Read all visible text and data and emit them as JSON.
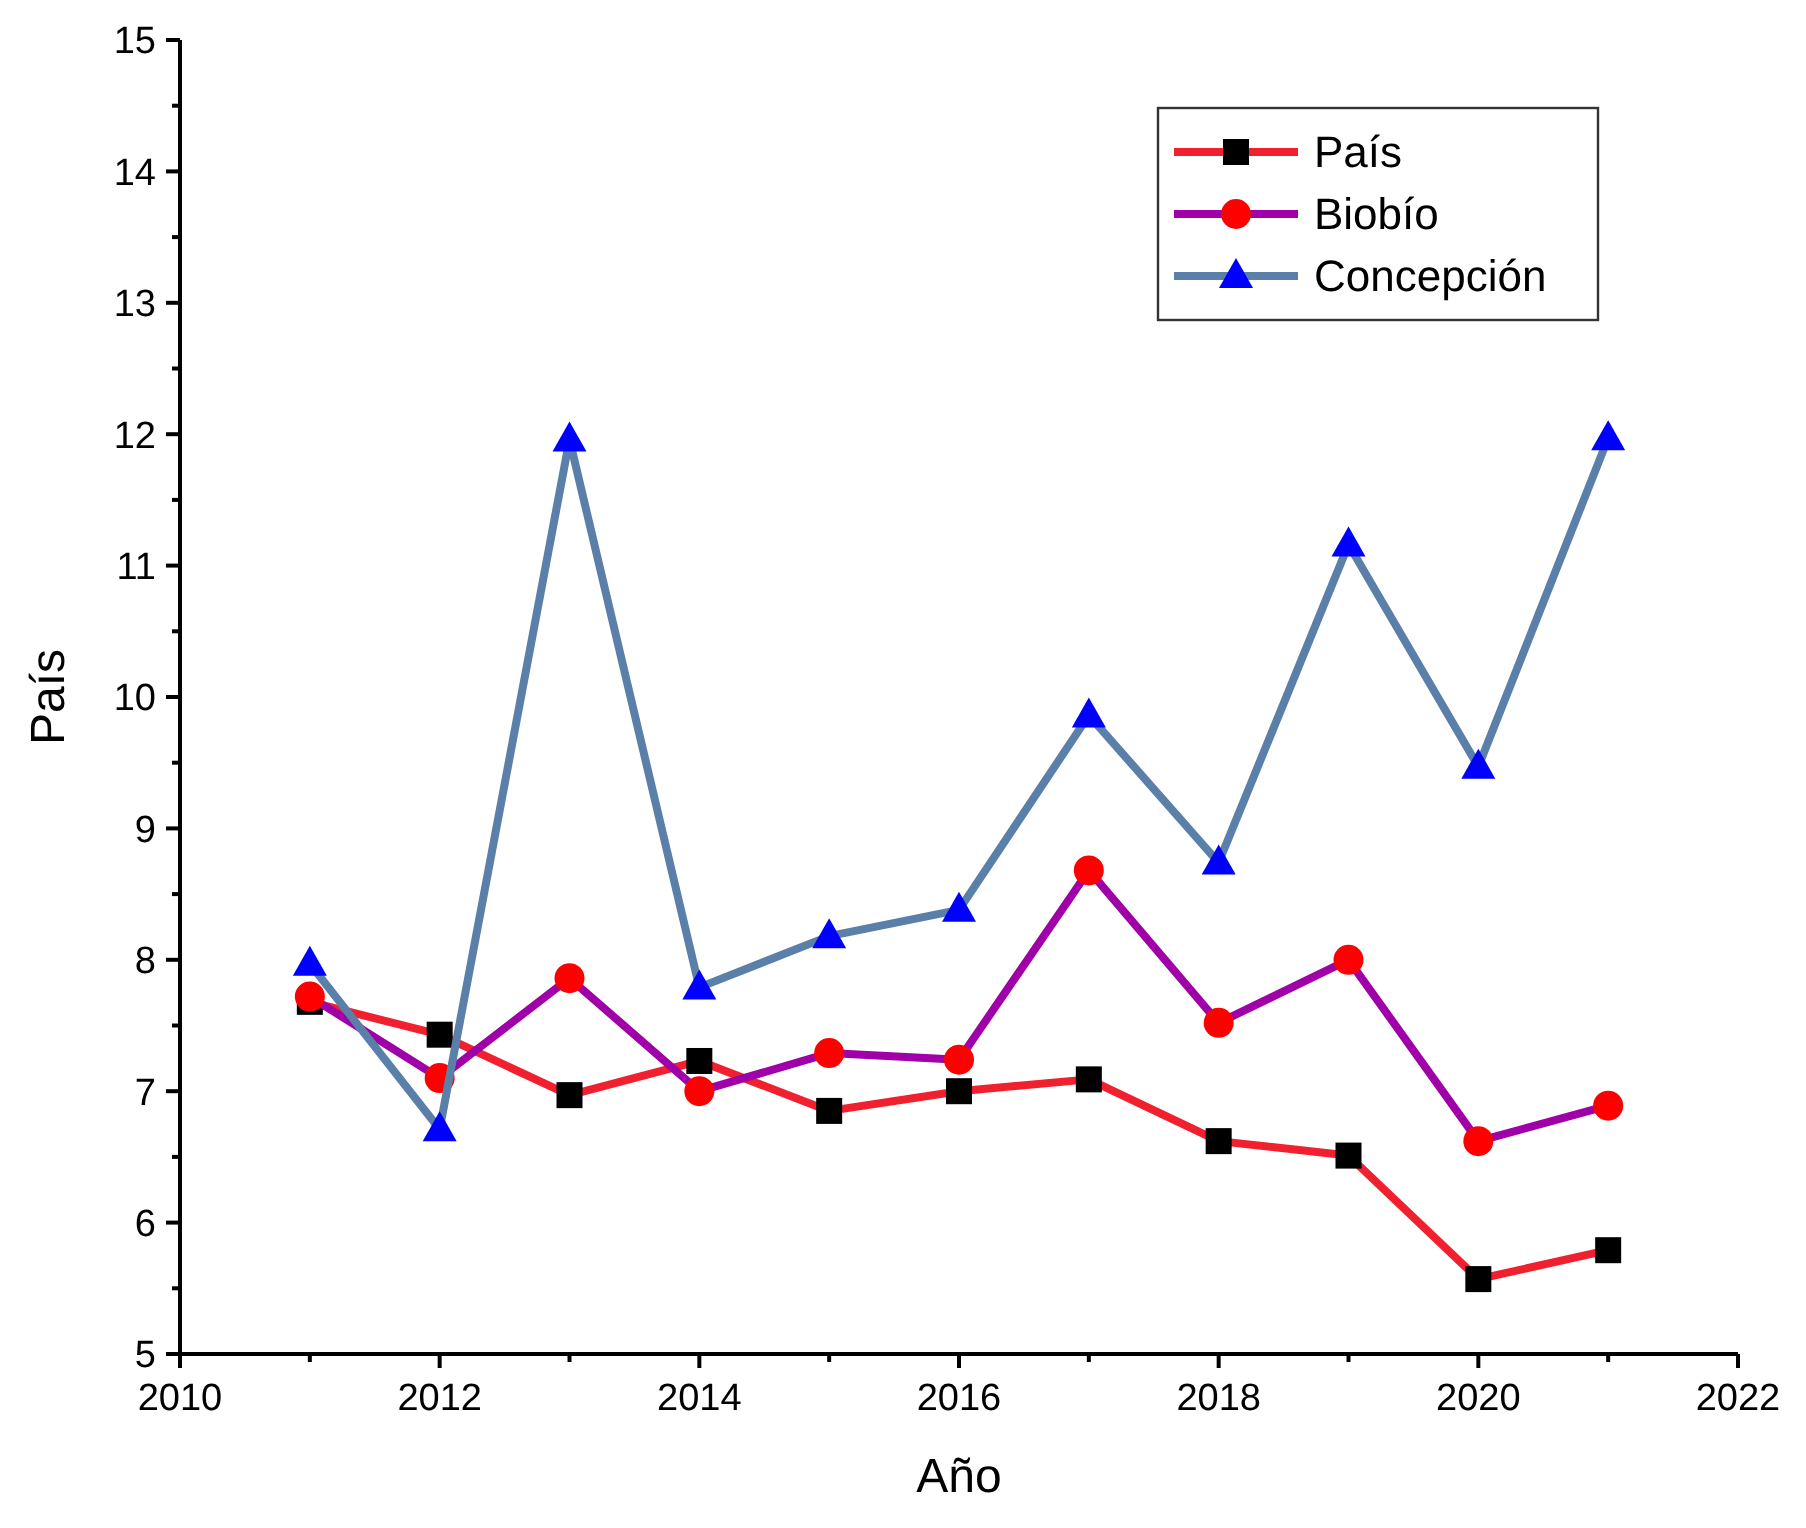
{
  "chart_data": {
    "type": "line",
    "xlabel": "Año",
    "ylabel": "País",
    "x": [
      2011,
      2012,
      2013,
      2014,
      2015,
      2016,
      2017,
      2018,
      2019,
      2020,
      2021
    ],
    "series": [
      {
        "name": "País",
        "color": "#f0202e",
        "colors": [
          "#000000",
          "#000000",
          "#000000",
          "#000000",
          "#000000",
          "#000000",
          "#000000",
          "#000000",
          "#000000",
          "#000000",
          "#000000"
        ],
        "marker": "square",
        "values": [
          7.68,
          7.43,
          6.97,
          7.23,
          6.85,
          7.0,
          7.09,
          6.62,
          6.51,
          5.57,
          5.79
        ]
      },
      {
        "name": "Biobío",
        "color": "#a000a8",
        "colors": [
          "#ff0000",
          "#ff0000",
          "#ff0000",
          "#ff0000",
          "#ff0000",
          "#ff0000",
          "#ff0000",
          "#ff0000",
          "#ff0000",
          "#ff0000",
          "#ff0000"
        ],
        "marker": "circle",
        "values": [
          7.72,
          7.1,
          7.86,
          7.0,
          7.29,
          7.24,
          8.68,
          7.52,
          8.0,
          6.62,
          6.89
        ]
      },
      {
        "name": "Concepción",
        "color": "#5a7fa8",
        "colors": [
          "#0000ff",
          "#0000ff",
          "#0000ff",
          "#0000ff",
          "#0000ff",
          "#0000ff",
          "#0000ff",
          "#0000ff",
          "#0000ff",
          "#0000ff",
          "#0000ff"
        ],
        "marker": "triangle",
        "values": [
          7.97,
          6.71,
          11.96,
          7.79,
          8.18,
          8.38,
          9.86,
          8.74,
          11.16,
          9.47,
          11.97
        ]
      }
    ],
    "xlim": [
      2010,
      2022
    ],
    "xticks": [
      2010,
      {
        "value": 2011,
        "label": null
      },
      2012,
      {
        "value": 2013,
        "label": null
      },
      2014,
      {
        "value": 2015,
        "label": null
      },
      2016,
      {
        "value": 2017,
        "label": null
      },
      2018,
      {
        "value": 2019,
        "label": null
      },
      2020,
      {
        "value": 2021,
        "label": null
      },
      2022
    ],
    "ylim": [
      5,
      15
    ],
    "yticks": [
      5,
      {
        "value": 5.5,
        "label": null
      },
      6,
      {
        "value": 6.5,
        "label": null
      },
      7,
      {
        "value": 7.5,
        "label": null
      },
      8,
      {
        "value": 8.5,
        "label": null
      },
      9,
      {
        "value": 9.5,
        "label": null
      },
      10,
      {
        "value": 10.5,
        "label": null
      },
      11,
      {
        "value": 11.5,
        "label": null
      },
      12,
      {
        "value": 12.5,
        "label": null
      },
      13,
      {
        "value": 13.5,
        "label": null
      },
      14,
      {
        "value": 14.5,
        "label": null
      },
      15
    ],
    "grid": false,
    "legend": "top right",
    "line_style": "solid"
  }
}
